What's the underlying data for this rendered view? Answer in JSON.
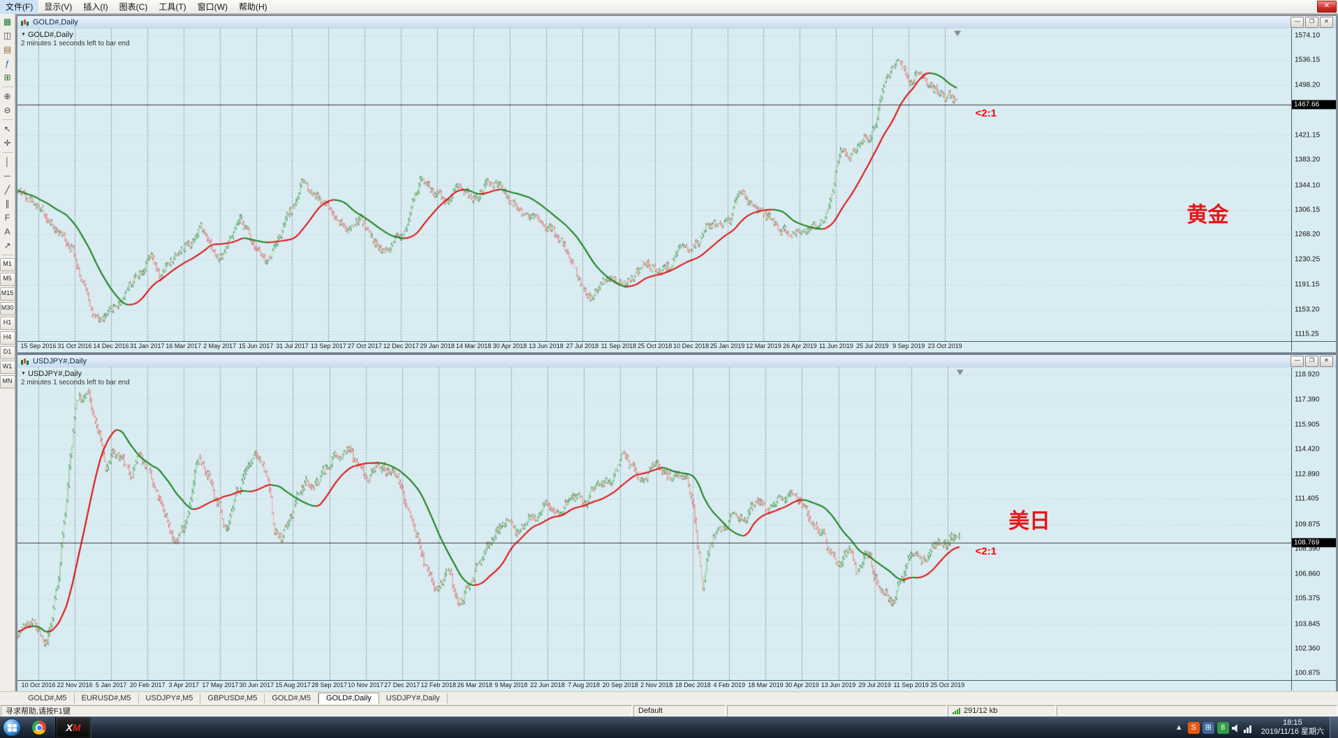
{
  "app": {
    "menu_items": [
      "文件(F)",
      "显示(V)",
      "插入(I)",
      "图表(C)",
      "工具(T)",
      "窗口(W)",
      "帮助(H)"
    ],
    "close_button_glyph": "✕",
    "window_buttons": [
      {
        "name": "minimize-button",
        "glyph": "—"
      },
      {
        "name": "restore-button",
        "glyph": "❐"
      },
      {
        "name": "close-button",
        "glyph": "✕"
      }
    ]
  },
  "toolbar": {
    "icons": [
      {
        "name": "new-order-icon",
        "glyph": "▦",
        "color": "#1B7E2C"
      },
      {
        "name": "new-chart-icon",
        "glyph": "◫",
        "color": "#444444"
      },
      {
        "name": "profiles-icon",
        "glyph": "▤",
        "color": "#8A6D3B"
      },
      {
        "name": "indicators-icon",
        "glyph": "ƒ",
        "color": "#0B61A4"
      },
      {
        "name": "grid-icon",
        "glyph": "⊞",
        "color": "#2E6B2E"
      },
      {
        "name": "zoom-in-icon",
        "glyph": "⊕",
        "color": "#444444"
      },
      {
        "name": "zoom-out-icon",
        "glyph": "⊖",
        "color": "#444444"
      },
      {
        "name": "cursor-icon",
        "glyph": "↖",
        "color": "#444444"
      },
      {
        "name": "crosshair-icon",
        "glyph": "✛",
        "color": "#444444"
      },
      {
        "name": "vertical-line-icon",
        "glyph": "│",
        "color": "#444444"
      },
      {
        "name": "horizontal-line-icon",
        "glyph": "─",
        "color": "#444444"
      },
      {
        "name": "trendline-icon",
        "glyph": "╱",
        "color": "#444444"
      },
      {
        "name": "channel-icon",
        "glyph": "∥",
        "color": "#444444"
      },
      {
        "name": "fibonacci-icon",
        "glyph": "F",
        "color": "#444444"
      },
      {
        "name": "text-icon",
        "glyph": "A",
        "color": "#444444"
      },
      {
        "name": "arrow-icon",
        "glyph": "↗",
        "color": "#444444"
      }
    ],
    "timeframes": [
      "M1",
      "M5",
      "M15",
      "M30",
      "H1",
      "H4",
      "D1",
      "W1",
      "MN"
    ]
  },
  "charts": [
    {
      "title": "GOLD#,Daily",
      "symbol_label": "GOLD#,Daily",
      "countdown": "2 minutes 1 seconds left to bar end",
      "price_box_label": "1467.66"
    },
    {
      "title": "USDJPY#,Daily",
      "symbol_label": "USDJPY#,Daily",
      "countdown": "2 minutes 1 seconds left to bar end",
      "price_box_label": "108.769"
    }
  ],
  "chart_data": [
    {
      "type": "candlestick",
      "title": "GOLD#,Daily",
      "symbol": "GOLD#",
      "timeframe": "Daily",
      "current_price": 1467.66,
      "y_range": [
        1115.25,
        1574.1
      ],
      "y_ticks": [
        "1574.10",
        "1536.15",
        "1498.20",
        "1421.15",
        "1383.20",
        "1344.10",
        "1306.15",
        "1268.20",
        "1230.25",
        "1191.15",
        "1153.20",
        "1115.25"
      ],
      "x_labels": [
        "15 Sep 2016",
        "31 Oct 2016",
        "14 Dec 2016",
        "31 Jan 2017",
        "16 Mar 2017",
        "2 May 2017",
        "15 Jun 2017",
        "31 Jul 2017",
        "13 Sep 2017",
        "27 Oct 2017",
        "12 Dec 2017",
        "29 Jan 2018",
        "14 Mar 2018",
        "30 Apr 2018",
        "13 Jun 2018",
        "27 Jul 2018",
        "11 Sep 2018",
        "25 Oct 2018",
        "10 Dec 2018",
        "25 Jan 2019",
        "12 Mar 2019",
        "26 Apr 2019",
        "11 Jun 2019",
        "25 Jul 2019",
        "9 Sep 2019",
        "23 Oct 2019"
      ],
      "n_bars": 720,
      "data_fraction": 0.738,
      "seed": 42,
      "volatility": 6.0,
      "wick": 4.5,
      "ma_period": 38,
      "up_color": "#1B7E2C",
      "up_fill": "#BFE3C4",
      "down_color": "#C9524E",
      "down_fill": "#F0BDB8",
      "ma_up_color": "#E00000",
      "ma_down_color": "#0B7A0B",
      "grid_v_color": "#4A5A64",
      "grid_h_color": "#AFC8D2",
      "price_line_color": "#3A3A3A",
      "annotations": [
        {
          "text": "<2:1",
          "x": 0.752,
          "y": 0.252,
          "size": 15,
          "color": "#FF0000"
        },
        {
          "text": "黄金",
          "x": 0.918,
          "y": 0.54,
          "size": 30,
          "color": "#E81717"
        }
      ],
      "anchors": [
        [
          0,
          1335
        ],
        [
          0.012,
          1324
        ],
        [
          0.025,
          1302
        ],
        [
          0.04,
          1272
        ],
        [
          0.055,
          1252
        ],
        [
          0.07,
          1185
        ],
        [
          0.082,
          1132
        ],
        [
          0.092,
          1142
        ],
        [
          0.105,
          1162
        ],
        [
          0.119,
          1196
        ],
        [
          0.13,
          1216
        ],
        [
          0.14,
          1232
        ],
        [
          0.15,
          1198
        ],
        [
          0.16,
          1228
        ],
        [
          0.172,
          1246
        ],
        [
          0.183,
          1256
        ],
        [
          0.192,
          1284
        ],
        [
          0.2,
          1266
        ],
        [
          0.212,
          1228
        ],
        [
          0.224,
          1258
        ],
        [
          0.236,
          1290
        ],
        [
          0.25,
          1256
        ],
        [
          0.263,
          1222
        ],
        [
          0.276,
          1266
        ],
        [
          0.29,
          1306
        ],
        [
          0.302,
          1350
        ],
        [
          0.314,
          1332
        ],
        [
          0.326,
          1312
        ],
        [
          0.34,
          1290
        ],
        [
          0.352,
          1276
        ],
        [
          0.364,
          1292
        ],
        [
          0.378,
          1256
        ],
        [
          0.392,
          1242
        ],
        [
          0.406,
          1262
        ],
        [
          0.42,
          1322
        ],
        [
          0.43,
          1358
        ],
        [
          0.443,
          1330
        ],
        [
          0.455,
          1320
        ],
        [
          0.466,
          1348
        ],
        [
          0.477,
          1330
        ],
        [
          0.488,
          1324
        ],
        [
          0.5,
          1348
        ],
        [
          0.512,
          1340
        ],
        [
          0.525,
          1316
        ],
        [
          0.54,
          1300
        ],
        [
          0.552,
          1296
        ],
        [
          0.565,
          1278
        ],
        [
          0.578,
          1254
        ],
        [
          0.59,
          1222
        ],
        [
          0.6,
          1186
        ],
        [
          0.61,
          1168
        ],
        [
          0.62,
          1194
        ],
        [
          0.63,
          1198
        ],
        [
          0.642,
          1190
        ],
        [
          0.655,
          1202
        ],
        [
          0.666,
          1226
        ],
        [
          0.68,
          1214
        ],
        [
          0.694,
          1222
        ],
        [
          0.706,
          1244
        ],
        [
          0.72,
          1254
        ],
        [
          0.734,
          1280
        ],
        [
          0.746,
          1286
        ],
        [
          0.758,
          1292
        ],
        [
          0.768,
          1340
        ],
        [
          0.779,
          1310
        ],
        [
          0.79,
          1300
        ],
        [
          0.802,
          1290
        ],
        [
          0.812,
          1274
        ],
        [
          0.822,
          1268
        ],
        [
          0.834,
          1280
        ],
        [
          0.845,
          1276
        ],
        [
          0.856,
          1286
        ],
        [
          0.864,
          1326
        ],
        [
          0.874,
          1398
        ],
        [
          0.884,
          1388
        ],
        [
          0.894,
          1410
        ],
        [
          0.903,
          1418
        ],
        [
          0.912,
          1442
        ],
        [
          0.92,
          1498
        ],
        [
          0.928,
          1518
        ],
        [
          0.937,
          1548
        ],
        [
          0.944,
          1518
        ],
        [
          0.951,
          1498
        ],
        [
          0.957,
          1530
        ],
        [
          0.963,
          1512
        ],
        [
          0.97,
          1494
        ],
        [
          0.978,
          1486
        ],
        [
          0.986,
          1476
        ],
        [
          0.993,
          1482
        ],
        [
          1,
          1467
        ]
      ]
    },
    {
      "type": "candlestick",
      "title": "USDJPY#,Daily",
      "symbol": "USDJPY#",
      "timeframe": "Daily",
      "current_price": 108.769,
      "y_range": [
        100.875,
        118.92
      ],
      "y_ticks": [
        "118.920",
        "117.390",
        "115.905",
        "114.420",
        "112.890",
        "111.405",
        "109.875",
        "108.390",
        "106.860",
        "105.375",
        "103.845",
        "102.360",
        "100.875"
      ],
      "x_labels": [
        "10 Oct 2016",
        "22 Nov 2016",
        "5 Jan 2017",
        "20 Feb 2017",
        "3 Apr 2017",
        "17 May 2017",
        "30 Jun 2017",
        "15 Aug 2017",
        "28 Sep 2017",
        "10 Nov 2017",
        "27 Dec 2017",
        "12 Feb 2018",
        "26 Mar 2018",
        "9 May 2018",
        "22 Jun 2018",
        "7 Aug 2018",
        "20 Sep 2018",
        "2 Nov 2018",
        "18 Dec 2018",
        "4 Feb 2019",
        "18 Mar 2019",
        "30 Apr 2019",
        "13 Jun 2019",
        "29 Jul 2019",
        "11 Sep 2019",
        "25 Oct 2019"
      ],
      "n_bars": 720,
      "data_fraction": 0.74,
      "seed": 7,
      "volatility": 0.26,
      "wick": 0.2,
      "ma_period": 38,
      "up_color": "#1B7E2C",
      "up_fill": "#BFE3C4",
      "down_color": "#C9524E",
      "down_fill": "#F0BDB8",
      "ma_up_color": "#E00000",
      "ma_down_color": "#0B7A0B",
      "grid_v_color": "#4A5A64",
      "grid_h_color": "#AFC8D2",
      "price_line_color": "#3A3A3A",
      "annotations": [
        {
          "text": "美日",
          "x": 0.778,
          "y": 0.435,
          "size": 30,
          "color": "#E81717"
        },
        {
          "text": "<2:1",
          "x": 0.752,
          "y": 0.57,
          "size": 15,
          "color": "#FF0000"
        }
      ],
      "anchors": [
        [
          0,
          103.4
        ],
        [
          0.01,
          103.9
        ],
        [
          0.02,
          103.6
        ],
        [
          0.027,
          102.2
        ],
        [
          0.033,
          103.6
        ],
        [
          0.04,
          106.2
        ],
        [
          0.048,
          110.4
        ],
        [
          0.055,
          114.6
        ],
        [
          0.062,
          118.0
        ],
        [
          0.068,
          117.2
        ],
        [
          0.073,
          117.9
        ],
        [
          0.08,
          116.0
        ],
        [
          0.087,
          114.8
        ],
        [
          0.093,
          112.8
        ],
        [
          0.1,
          114.4
        ],
        [
          0.108,
          113.6
        ],
        [
          0.118,
          112.8
        ],
        [
          0.126,
          114.0
        ],
        [
          0.135,
          113.4
        ],
        [
          0.145,
          111.6
        ],
        [
          0.155,
          110.4
        ],
        [
          0.166,
          108.6
        ],
        [
          0.174,
          109.8
        ],
        [
          0.182,
          111.4
        ],
        [
          0.19,
          114.0
        ],
        [
          0.2,
          113.0
        ],
        [
          0.21,
          111.2
        ],
        [
          0.221,
          109.6
        ],
        [
          0.233,
          112.2
        ],
        [
          0.244,
          113.6
        ],
        [
          0.254,
          114.0
        ],
        [
          0.263,
          112.6
        ],
        [
          0.272,
          109.2
        ],
        [
          0.28,
          109.0
        ],
        [
          0.288,
          110.4
        ],
        [
          0.297,
          111.8
        ],
        [
          0.306,
          112.6
        ],
        [
          0.315,
          112.2
        ],
        [
          0.325,
          113.2
        ],
        [
          0.338,
          114.0
        ],
        [
          0.35,
          114.3
        ],
        [
          0.36,
          113.4
        ],
        [
          0.37,
          112.7
        ],
        [
          0.381,
          113.5
        ],
        [
          0.392,
          113.1
        ],
        [
          0.402,
          112.6
        ],
        [
          0.412,
          110.8
        ],
        [
          0.423,
          109.0
        ],
        [
          0.433,
          107.0
        ],
        [
          0.444,
          106.0
        ],
        [
          0.455,
          106.8
        ],
        [
          0.468,
          104.9
        ],
        [
          0.478,
          106.4
        ],
        [
          0.49,
          107.6
        ],
        [
          0.5,
          109.0
        ],
        [
          0.51,
          109.6
        ],
        [
          0.52,
          110.3
        ],
        [
          0.53,
          109.2
        ],
        [
          0.541,
          110.5
        ],
        [
          0.55,
          110.1
        ],
        [
          0.562,
          111.3
        ],
        [
          0.574,
          110.7
        ],
        [
          0.589,
          111.5
        ],
        [
          0.6,
          111.0
        ],
        [
          0.612,
          112.2
        ],
        [
          0.628,
          112.4
        ],
        [
          0.64,
          114.1
        ],
        [
          0.65,
          113.5
        ],
        [
          0.659,
          112.4
        ],
        [
          0.668,
          113.1
        ],
        [
          0.678,
          113.5
        ],
        [
          0.69,
          112.7
        ],
        [
          0.7,
          113.1
        ],
        [
          0.707,
          112.5
        ],
        [
          0.716,
          111.2
        ],
        [
          0.722,
          108.0
        ],
        [
          0.726,
          105.4
        ],
        [
          0.732,
          108.3
        ],
        [
          0.741,
          109.5
        ],
        [
          0.75,
          109.8
        ],
        [
          0.76,
          110.5
        ],
        [
          0.772,
          110.3
        ],
        [
          0.786,
          111.3
        ],
        [
          0.8,
          110.7
        ],
        [
          0.81,
          111.5
        ],
        [
          0.82,
          112.1
        ],
        [
          0.831,
          111.3
        ],
        [
          0.842,
          110.1
        ],
        [
          0.852,
          109.5
        ],
        [
          0.863,
          108.1
        ],
        [
          0.872,
          107.5
        ],
        [
          0.881,
          108.3
        ],
        [
          0.891,
          106.6
        ],
        [
          0.9,
          108.5
        ],
        [
          0.91,
          106.4
        ],
        [
          0.92,
          105.7
        ],
        [
          0.929,
          105.1
        ],
        [
          0.938,
          106.7
        ],
        [
          0.945,
          107.9
        ],
        [
          0.953,
          108.3
        ],
        [
          0.961,
          107.6
        ],
        [
          0.969,
          108.4
        ],
        [
          0.976,
          108.9
        ],
        [
          0.983,
          108.5
        ],
        [
          0.991,
          109.2
        ],
        [
          1,
          108.77
        ]
      ]
    }
  ],
  "tabs": {
    "items": [
      "GOLD#,M5",
      "EURUSD#,M5",
      "USDJPY#,M5",
      "GBPUSD#,M5",
      "GOLD#,M5",
      "GOLD#,Daily",
      "USDJPY#,Daily"
    ],
    "active_index": 5
  },
  "statusbar": {
    "help_text": "寻求帮助,请按F1键",
    "profile": "Default",
    "traffic": "291/12 kb"
  },
  "taskbar": {
    "apps": [
      {
        "name": "chrome"
      },
      {
        "name": "xm-terminal",
        "label_x": "X",
        "label_m": "M"
      }
    ],
    "tray": [
      {
        "kind": "glyph",
        "name": "hidden-icons-arrow-icon",
        "glyph": "▲",
        "bg": "transparent",
        "fg": "#E8EEF4"
      },
      {
        "kind": "glyph",
        "name": "sogou-input-icon",
        "glyph": "S",
        "bg": "#E8590C",
        "fg": "#FFFFFF"
      },
      {
        "kind": "glyph",
        "name": "app-tray-icon",
        "glyph": "⊞",
        "bg": "#41689A",
        "fg": "#FFFFFF"
      },
      {
        "kind": "glyph",
        "name": "security-tray-icon",
        "glyph": "8",
        "bg": "#2F9E44",
        "fg": "#FFFFFF"
      },
      {
        "kind": "speaker",
        "name": "volume-icon"
      },
      {
        "kind": "network",
        "name": "network-icon"
      }
    ],
    "time": "18:15",
    "date": "2019/11/16 星期六"
  }
}
